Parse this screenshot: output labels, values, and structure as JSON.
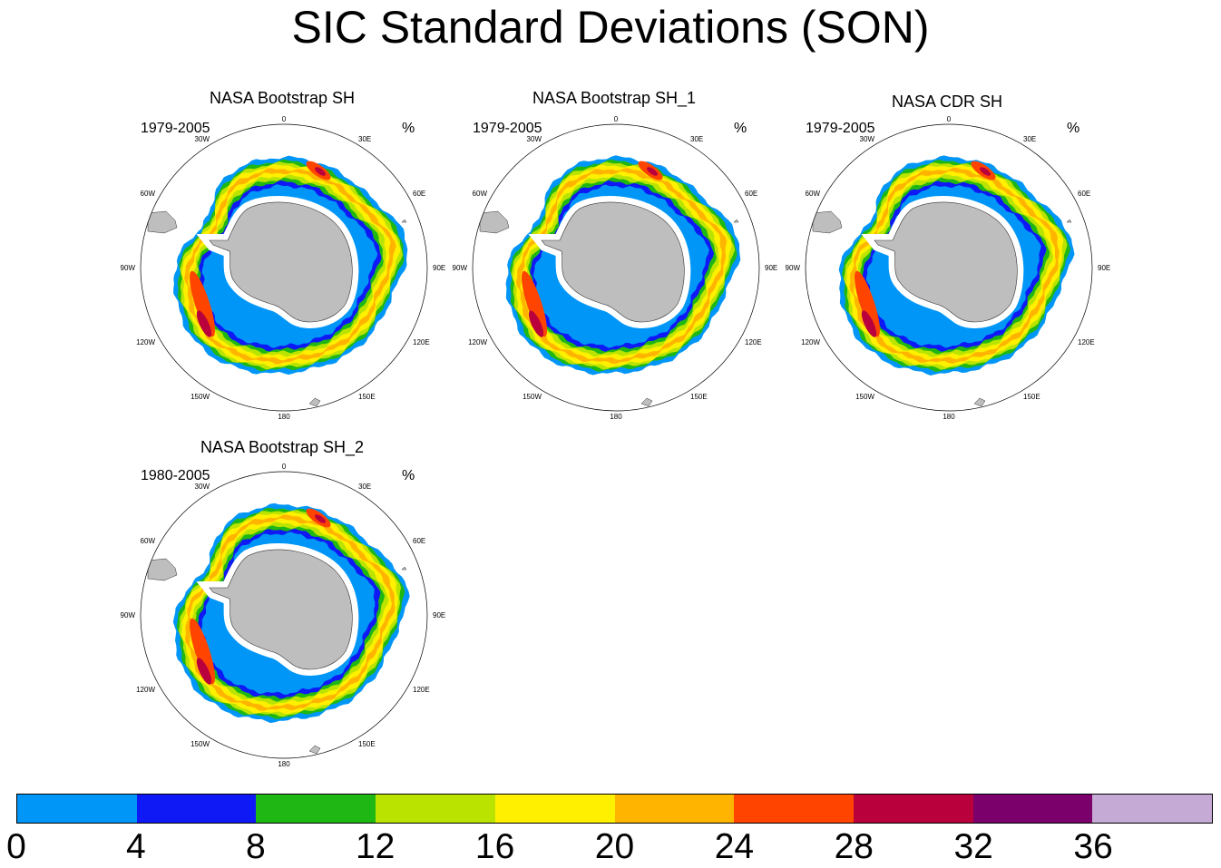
{
  "title": "SIC Standard Deviations (SON)",
  "panels": [
    {
      "title": "NASA Bootstrap SH",
      "period": "1979-2005",
      "unit": "%"
    },
    {
      "title": "NASA Bootstrap SH_1",
      "period": "1979-2005",
      "unit": "%"
    },
    {
      "title": "NASA CDR SH",
      "period": "1979-2005",
      "unit": "%"
    },
    {
      "title": "NASA Bootstrap SH_2",
      "period": "1980-2005",
      "unit": "%"
    }
  ],
  "longitude_labels": [
    "0",
    "30E",
    "60E",
    "90E",
    "120E",
    "150E",
    "180",
    "150W",
    "120W",
    "90W",
    "60W",
    "30W"
  ],
  "colorbar": {
    "colors": [
      "#0096f8",
      "#0f19f5",
      "#1eb714",
      "#bae400",
      "#fff000",
      "#ffb400",
      "#ff4400",
      "#b9003d",
      "#7c006b",
      "#c5aad6"
    ],
    "tick_labels": [
      "0",
      "4",
      "8",
      "12",
      "16",
      "20",
      "24",
      "28",
      "32",
      "36"
    ]
  },
  "colors": {
    "land": "#bebebe",
    "background": "#ffffff"
  }
}
